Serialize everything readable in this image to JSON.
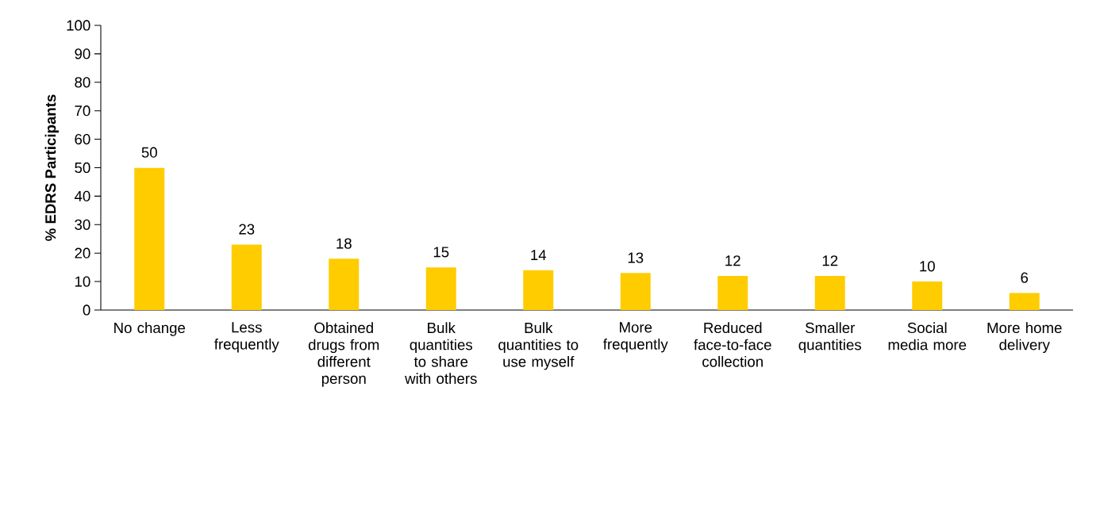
{
  "chart_data": {
    "type": "bar",
    "ylabel": "% EDRS Participants",
    "categories": [
      "No change",
      "Less frequently",
      "Obtained drugs from different person",
      "Bulk quantities to share with others",
      "Bulk quantities to use myself",
      "More frequently",
      "Reduced face-to-face collection",
      "Smaller quantities",
      "Social media more",
      "More home delivery"
    ],
    "values": [
      50,
      23,
      18,
      15,
      14,
      13,
      12,
      12,
      10,
      6
    ],
    "color": "#ffcc00",
    "ylim": [
      0,
      100
    ],
    "yticks": [
      0,
      10,
      20,
      30,
      40,
      50,
      60,
      70,
      80,
      90,
      100
    ],
    "data_labels": true
  }
}
